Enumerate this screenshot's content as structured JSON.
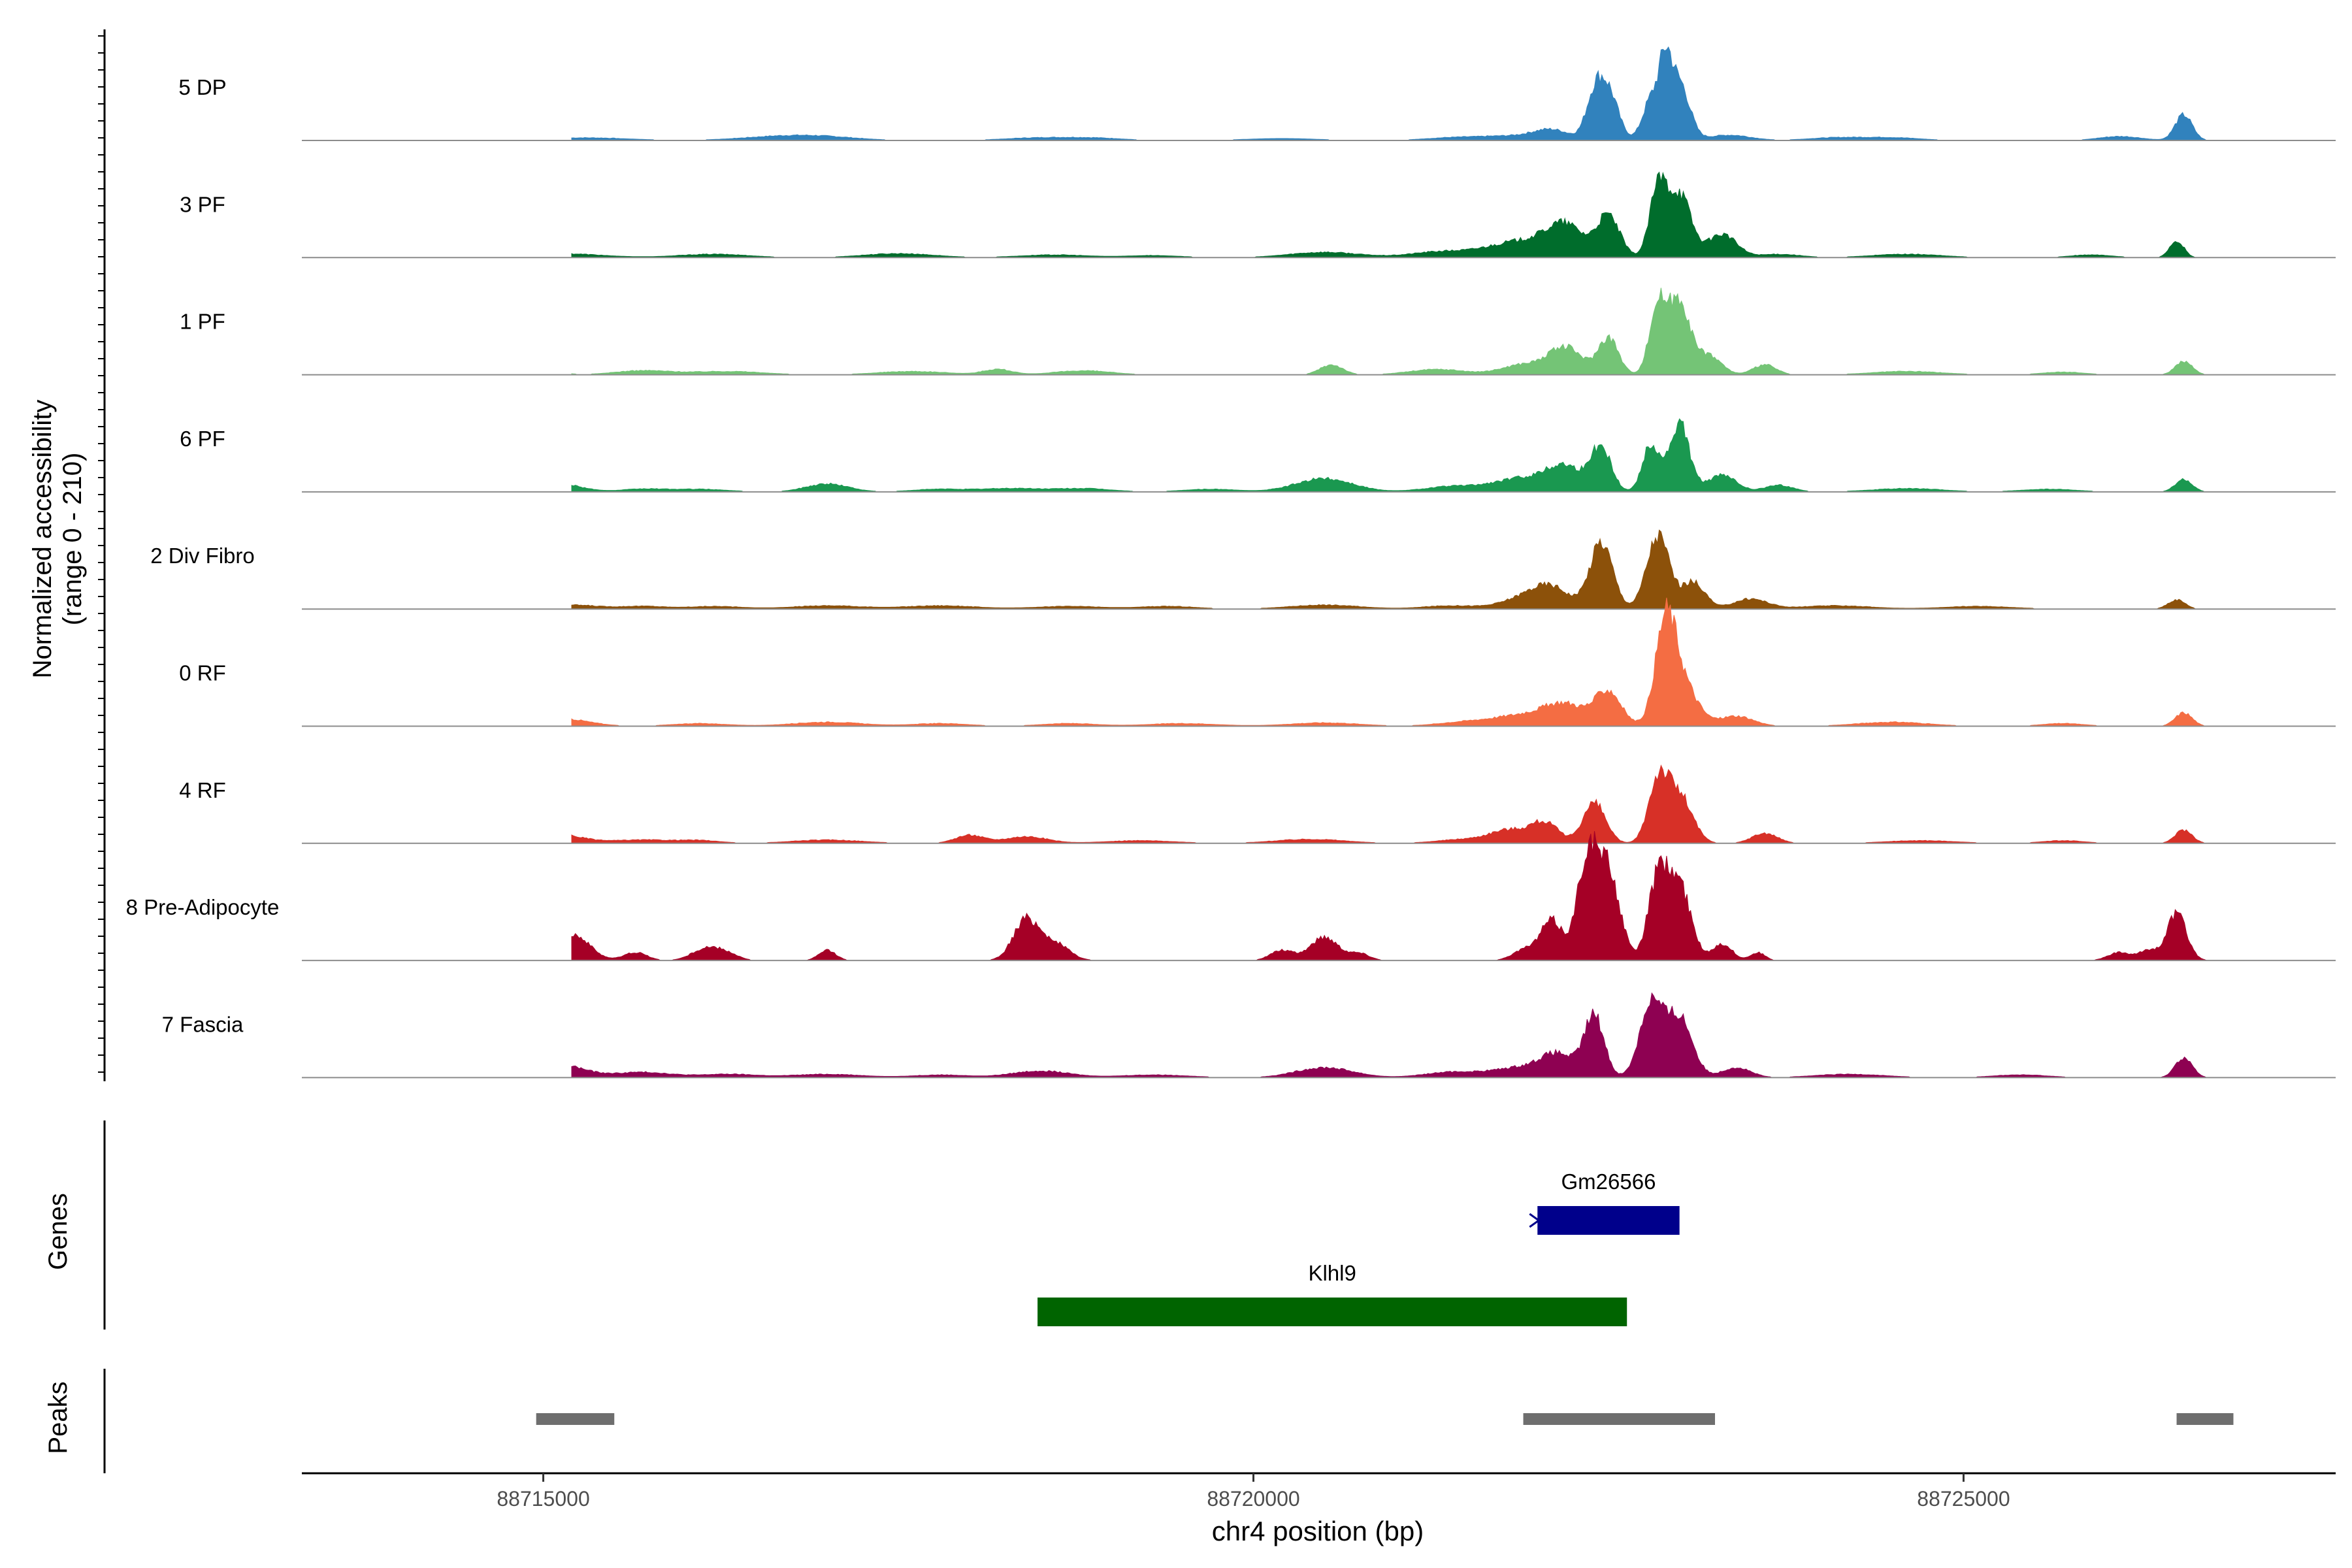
{
  "chart_data": {
    "type": "area",
    "title": "",
    "chromosome": "chr4",
    "xlabel": "chr4 position (bp)",
    "ylabel_line1": "Normalized accessibility",
    "ylabel_line2": "(range 0 - 210)",
    "xlim": [
      88713300,
      88727620
    ],
    "x_ticks": [
      88715000,
      88720000,
      88725000
    ],
    "x_tick_labels": [
      "88715000",
      "88720000",
      "88725000"
    ],
    "ylim": [
      0,
      210
    ],
    "series": [
      {
        "name": "5 DP",
        "color": "#3182bd",
        "peaks": [
          [
            88715300,
            4,
            300
          ],
          [
            88716700,
            6,
            300
          ],
          [
            88717000,
            3,
            250
          ],
          [
            88718500,
            4,
            250
          ],
          [
            88718900,
            3,
            200
          ],
          [
            88720200,
            3,
            250
          ],
          [
            88721400,
            4,
            200
          ],
          [
            88721800,
            6,
            200
          ],
          [
            88722100,
            15,
            130
          ],
          [
            88722400,
            60,
            60
          ],
          [
            88722500,
            70,
            70
          ],
          [
            88722800,
            60,
            60
          ],
          [
            88722900,
            95,
            45
          ],
          [
            88723000,
            85,
            70
          ],
          [
            88723350,
            8,
            150
          ],
          [
            88724100,
            4,
            200
          ],
          [
            88724500,
            4,
            200
          ],
          [
            88726100,
            6,
            150
          ],
          [
            88726550,
            38,
            60
          ]
        ]
      },
      {
        "name": "3 PF",
        "color": "#006d2c",
        "peaks": [
          [
            88715100,
            6,
            300
          ],
          [
            88716200,
            5,
            250
          ],
          [
            88717500,
            6,
            250
          ],
          [
            88718600,
            4,
            250
          ],
          [
            88719300,
            3,
            200
          ],
          [
            88720500,
            8,
            250
          ],
          [
            88721300,
            8,
            200
          ],
          [
            88721900,
            25,
            250
          ],
          [
            88722200,
            40,
            130
          ],
          [
            88722500,
            60,
            80
          ],
          [
            88722850,
            100,
            60
          ],
          [
            88723000,
            95,
            80
          ],
          [
            88723300,
            35,
            100
          ],
          [
            88723700,
            5,
            150
          ],
          [
            88724600,
            5,
            250
          ],
          [
            88725900,
            4,
            150
          ],
          [
            88726500,
            25,
            50
          ]
        ]
      },
      {
        "name": "1 PF",
        "color": "#74c476",
        "peaks": [
          [
            88714950,
            12,
            120
          ],
          [
            88715700,
            6,
            200
          ],
          [
            88716300,
            5,
            250
          ],
          [
            88717600,
            5,
            250
          ],
          [
            88718200,
            8,
            100
          ],
          [
            88718800,
            6,
            200
          ],
          [
            88720550,
            15,
            80
          ],
          [
            88721300,
            8,
            200
          ],
          [
            88721900,
            15,
            150
          ],
          [
            88722200,
            40,
            120
          ],
          [
            88722500,
            55,
            70
          ],
          [
            88722850,
            105,
            60
          ],
          [
            88723000,
            110,
            70
          ],
          [
            88723200,
            30,
            90
          ],
          [
            88723600,
            15,
            80
          ],
          [
            88724600,
            5,
            250
          ],
          [
            88725700,
            4,
            150
          ],
          [
            88726550,
            20,
            60
          ]
        ]
      },
      {
        "name": "6 PF",
        "color": "#1a9850",
        "peaks": [
          [
            88715050,
            15,
            180
          ],
          [
            88715700,
            4,
            150
          ],
          [
            88716100,
            4,
            200
          ],
          [
            88717000,
            12,
            150
          ],
          [
            88717800,
            4,
            200
          ],
          [
            88718300,
            5,
            200
          ],
          [
            88718800,
            5,
            200
          ],
          [
            88719700,
            4,
            200
          ],
          [
            88720500,
            20,
            200
          ],
          [
            88721400,
            8,
            200
          ],
          [
            88721900,
            20,
            200
          ],
          [
            88722200,
            35,
            130
          ],
          [
            88722450,
            65,
            70
          ],
          [
            88722800,
            70,
            60
          ],
          [
            88723000,
            100,
            70
          ],
          [
            88723300,
            25,
            100
          ],
          [
            88723700,
            10,
            100
          ],
          [
            88724600,
            5,
            250
          ],
          [
            88725600,
            4,
            200
          ],
          [
            88726550,
            18,
            60
          ]
        ]
      },
      {
        "name": "2 Div Fibro",
        "color": "#8c510a",
        "peaks": [
          [
            88715200,
            6,
            200
          ],
          [
            88715700,
            4,
            150
          ],
          [
            88716200,
            4,
            200
          ],
          [
            88717000,
            5,
            250
          ],
          [
            88717800,
            5,
            250
          ],
          [
            88718700,
            4,
            250
          ],
          [
            88719400,
            4,
            200
          ],
          [
            88720500,
            6,
            250
          ],
          [
            88721400,
            5,
            200
          ],
          [
            88721900,
            15,
            150
          ],
          [
            88722100,
            30,
            130
          ],
          [
            88722450,
            100,
            80
          ],
          [
            88722850,
            110,
            80
          ],
          [
            88723100,
            40,
            80
          ],
          [
            88723500,
            15,
            120
          ],
          [
            88724100,
            5,
            250
          ],
          [
            88725100,
            4,
            250
          ],
          [
            88726500,
            14,
            60
          ]
        ]
      },
      {
        "name": "0 RF",
        "color": "#f46d43",
        "peaks": [
          [
            88715100,
            12,
            200
          ],
          [
            88716100,
            4,
            200
          ],
          [
            88717000,
            6,
            250
          ],
          [
            88717800,
            4,
            200
          ],
          [
            88718700,
            4,
            200
          ],
          [
            88719500,
            4,
            250
          ],
          [
            88720500,
            5,
            250
          ],
          [
            88721500,
            6,
            200
          ],
          [
            88721900,
            15,
            200
          ],
          [
            88722200,
            30,
            150
          ],
          [
            88722500,
            50,
            90
          ],
          [
            88722900,
            125,
            70
          ],
          [
            88723000,
            70,
            110
          ],
          [
            88723400,
            15,
            120
          ],
          [
            88724500,
            6,
            250
          ],
          [
            88725700,
            4,
            150
          ],
          [
            88726550,
            20,
            60
          ]
        ]
      },
      {
        "name": "4 RF",
        "color": "#d73027",
        "peaks": [
          [
            88715050,
            15,
            200
          ],
          [
            88715700,
            5,
            200
          ],
          [
            88716100,
            4,
            150
          ],
          [
            88717000,
            5,
            250
          ],
          [
            88718000,
            12,
            100
          ],
          [
            88718400,
            10,
            150
          ],
          [
            88719200,
            4,
            250
          ],
          [
            88720400,
            6,
            250
          ],
          [
            88721500,
            6,
            200
          ],
          [
            88721800,
            18,
            130
          ],
          [
            88722050,
            30,
            100
          ],
          [
            88722400,
            60,
            80
          ],
          [
            88722850,
            90,
            70
          ],
          [
            88723000,
            70,
            90
          ],
          [
            88723600,
            15,
            90
          ],
          [
            88724700,
            4,
            250
          ],
          [
            88725700,
            4,
            150
          ],
          [
            88726550,
            20,
            60
          ]
        ]
      },
      {
        "name": "8 Pre-Adipocyte",
        "color": "#a50026",
        "peaks": [
          [
            88715200,
            40,
            120
          ],
          [
            88715650,
            12,
            80
          ],
          [
            88716150,
            18,
            100
          ],
          [
            88716300,
            8,
            80
          ],
          [
            88717000,
            15,
            60
          ],
          [
            88718400,
            60,
            90
          ],
          [
            88718600,
            25,
            100
          ],
          [
            88720200,
            15,
            80
          ],
          [
            88720500,
            35,
            100
          ],
          [
            88720750,
            10,
            70
          ],
          [
            88721900,
            15,
            80
          ],
          [
            88722100,
            60,
            80
          ],
          [
            88722350,
            150,
            70
          ],
          [
            88722500,
            130,
            80
          ],
          [
            88722850,
            120,
            70
          ],
          [
            88723000,
            110,
            80
          ],
          [
            88723300,
            25,
            70
          ],
          [
            88723550,
            12,
            50
          ],
          [
            88726100,
            12,
            80
          ],
          [
            88726300,
            15,
            60
          ],
          [
            88726500,
            70,
            70
          ]
        ]
      },
      {
        "name": "7 Fascia",
        "color": "#8e0152",
        "peaks": [
          [
            88715100,
            20,
            180
          ],
          [
            88715700,
            8,
            200
          ],
          [
            88716300,
            5,
            200
          ],
          [
            88717000,
            5,
            250
          ],
          [
            88717800,
            4,
            200
          ],
          [
            88718500,
            10,
            200
          ],
          [
            88719300,
            4,
            250
          ],
          [
            88720500,
            15,
            200
          ],
          [
            88721400,
            8,
            200
          ],
          [
            88721900,
            15,
            200
          ],
          [
            88722150,
            30,
            120
          ],
          [
            88722400,
            90,
            70
          ],
          [
            88722800,
            110,
            80
          ],
          [
            88723000,
            90,
            90
          ],
          [
            88723400,
            15,
            100
          ],
          [
            88724200,
            5,
            250
          ],
          [
            88725400,
            4,
            200
          ],
          [
            88726550,
            30,
            60
          ]
        ]
      }
    ],
    "genes": [
      {
        "name": "Gm26566",
        "start": 88722000,
        "end": 88723000,
        "strand": "-",
        "color": "#00008b"
      },
      {
        "name": "Klhl9",
        "start": 88718480,
        "end": 88722630,
        "strand": "+",
        "color": "#006400"
      }
    ],
    "genes_label": "Genes",
    "peaks": [
      [
        88714950,
        88715500
      ],
      [
        88721900,
        88723250
      ],
      [
        88726500,
        88726900
      ]
    ],
    "peaks_label": "Peaks",
    "peaks_color": "#6e6e6e"
  }
}
